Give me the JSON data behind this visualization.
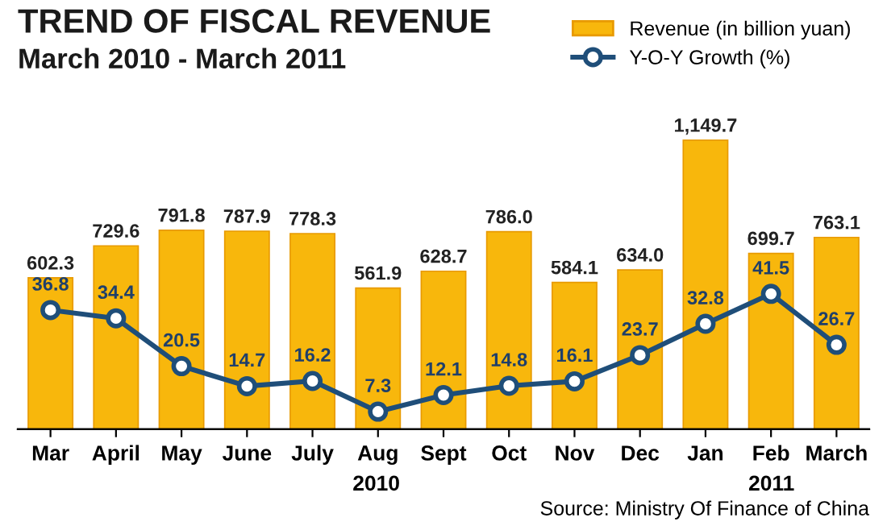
{
  "chart_data": {
    "type": "bar",
    "title": "TREND OF FISCAL REVENUE",
    "subtitle": "March 2010 - March 2011",
    "categories": [
      "Mar",
      "April",
      "May",
      "June",
      "July",
      "Aug",
      "Sept",
      "Oct",
      "Nov",
      "Dec",
      "Jan",
      "Feb",
      "March"
    ],
    "series": [
      {
        "name": "Revenue (in billion yuan)",
        "color": "#f8b70c",
        "values": [
          602.3,
          729.6,
          791.8,
          787.9,
          778.3,
          561.9,
          628.7,
          786.0,
          584.1,
          634.0,
          1149.7,
          699.7,
          763.1
        ],
        "value_labels": [
          "602.3",
          "729.6",
          "791.8",
          "787.9",
          "778.3",
          "561.9",
          "628.7",
          "786.0",
          "584.1",
          "634.0",
          "1,149.7",
          "699.7",
          "763.1"
        ]
      },
      {
        "name": "Y-O-Y Growth (%)",
        "type": "line",
        "axis": "y2",
        "color": "#1f4e79",
        "marker": "circle",
        "values": [
          36.8,
          34.4,
          20.5,
          14.7,
          16.2,
          7.3,
          12.1,
          14.8,
          16.1,
          23.7,
          32.8,
          41.5,
          26.7
        ]
      }
    ],
    "tick_labels": "x",
    "data_labels": true,
    "legend": "top right",
    "annotations": [
      "2010",
      "2011",
      "Source: Ministry Of Finance of China"
    ]
  }
}
